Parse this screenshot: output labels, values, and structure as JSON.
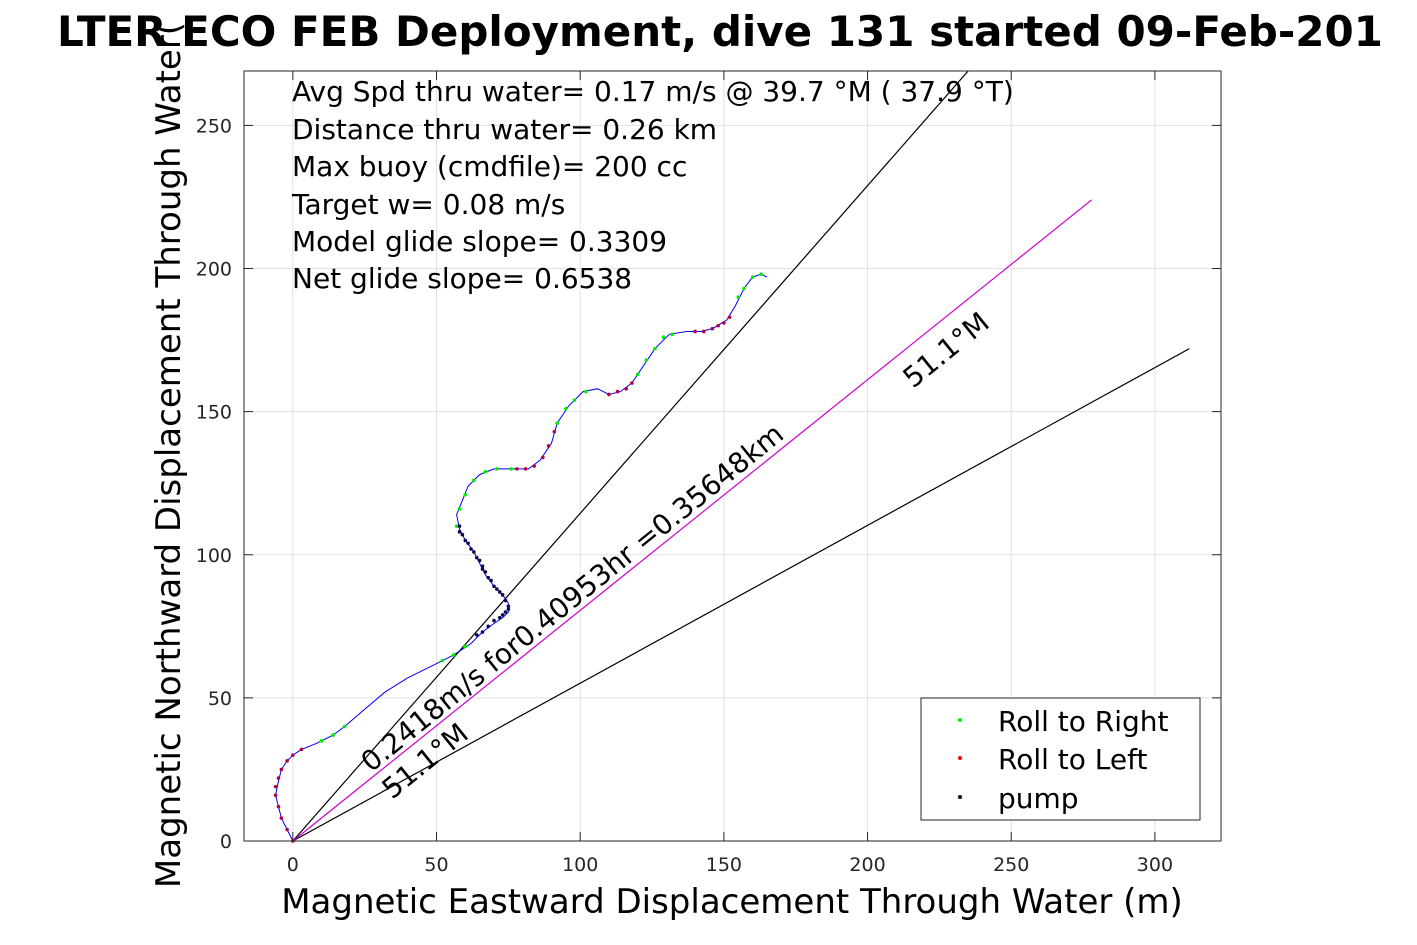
{
  "chart_data": {
    "type": "scatter",
    "title": "LTER ECO FEB Deployment, dive 131 started 09-Feb-201",
    "xlabel": "Magnetic Eastward Displacement Through Water (m)",
    "ylabel": "Magnetic Northward Displacement Through Water(",
    "xlim": [
      -17,
      323
    ],
    "ylim": [
      0,
      269
    ],
    "xticks": [
      0,
      50,
      100,
      150,
      200,
      250,
      300
    ],
    "yticks": [
      0,
      50,
      100,
      150,
      200,
      250
    ],
    "grid": true,
    "legend_position": "bottom-right",
    "legend": [
      {
        "label": "Roll to Right",
        "color": "#00ee00"
      },
      {
        "label": "Roll to Left",
        "color": "#ff0000"
      },
      {
        "label": "pump",
        "color": "#000000"
      }
    ],
    "info_lines": [
      "Avg Spd thru water=  0.17 m/s @  39.7 °M ( 37.9 °T)",
      "Distance thru water=  0.26 km",
      "Max buoy (cmdfile)= 200 cc",
      "Target w= 0.08 m/s",
      "Model glide slope= 0.3309",
      "Net glide slope= 0.6538"
    ],
    "annotations": {
      "current_label": "0.2418m/s for0.40953hr =0.35648km",
      "heading_label_upper": "51.1°M",
      "heading_label_lower": "51.1°M"
    },
    "track": {
      "color": "#0000ff",
      "points": [
        [
          0,
          0
        ],
        [
          -2,
          4
        ],
        [
          -4,
          8
        ],
        [
          -5,
          12
        ],
        [
          -6,
          16
        ],
        [
          -5,
          21
        ],
        [
          -4,
          25
        ],
        [
          -2,
          28
        ],
        [
          0,
          30
        ],
        [
          3,
          32
        ],
        [
          8,
          34
        ],
        [
          14,
          37
        ],
        [
          18,
          40
        ],
        [
          25,
          46
        ],
        [
          32,
          52
        ],
        [
          40,
          57
        ],
        [
          48,
          61
        ],
        [
          56,
          65
        ],
        [
          62,
          69
        ],
        [
          66,
          73
        ],
        [
          70,
          76
        ],
        [
          73,
          78
        ],
        [
          75,
          80
        ],
        [
          75,
          83
        ],
        [
          73,
          86
        ],
        [
          70,
          89
        ],
        [
          67,
          93
        ],
        [
          65,
          97
        ],
        [
          63,
          101
        ],
        [
          60,
          105
        ],
        [
          58,
          109
        ],
        [
          57,
          114
        ],
        [
          59,
          119
        ],
        [
          61,
          124
        ],
        [
          65,
          128
        ],
        [
          70,
          130
        ],
        [
          76,
          130
        ],
        [
          82,
          130
        ],
        [
          86,
          133
        ],
        [
          90,
          139
        ],
        [
          92,
          146
        ],
        [
          96,
          152
        ],
        [
          101,
          157
        ],
        [
          106,
          158
        ],
        [
          110,
          156
        ],
        [
          114,
          157
        ],
        [
          118,
          160
        ],
        [
          122,
          166
        ],
        [
          126,
          172
        ],
        [
          131,
          177
        ],
        [
          137,
          178
        ],
        [
          142,
          178
        ],
        [
          146,
          179
        ],
        [
          151,
          182
        ],
        [
          154,
          187
        ],
        [
          157,
          193
        ],
        [
          160,
          197
        ],
        [
          163,
          198
        ],
        [
          165,
          197
        ]
      ]
    },
    "roll_right_points": [
      [
        10,
        35
      ],
      [
        14,
        37
      ],
      [
        18,
        40
      ],
      [
        52,
        63
      ],
      [
        56,
        65
      ],
      [
        60,
        68
      ],
      [
        57,
        110
      ],
      [
        58,
        116
      ],
      [
        60,
        121
      ],
      [
        63,
        126
      ],
      [
        67,
        129
      ],
      [
        71,
        130
      ],
      [
        76,
        130
      ],
      [
        92,
        146
      ],
      [
        95,
        151
      ],
      [
        98,
        154
      ],
      [
        102,
        157
      ],
      [
        120,
        163
      ],
      [
        123,
        168
      ],
      [
        126,
        172
      ],
      [
        129,
        176
      ],
      [
        132,
        177
      ],
      [
        155,
        190
      ],
      [
        157,
        193
      ],
      [
        160,
        197
      ],
      [
        163,
        198
      ]
    ],
    "roll_left_points": [
      [
        0,
        0
      ],
      [
        -2,
        4
      ],
      [
        -4,
        8
      ],
      [
        -5,
        12
      ],
      [
        -6,
        16
      ],
      [
        -6,
        19
      ],
      [
        -5,
        22
      ],
      [
        -4,
        25
      ],
      [
        -2,
        28
      ],
      [
        0,
        30
      ],
      [
        3,
        32
      ],
      [
        78,
        130
      ],
      [
        81,
        130
      ],
      [
        84,
        131
      ],
      [
        87,
        134
      ],
      [
        89,
        138
      ],
      [
        91,
        143
      ],
      [
        110,
        156
      ],
      [
        113,
        157
      ],
      [
        116,
        158
      ],
      [
        118,
        160
      ],
      [
        140,
        178
      ],
      [
        143,
        178
      ],
      [
        146,
        179
      ],
      [
        148,
        180
      ],
      [
        150,
        181
      ],
      [
        152,
        183
      ]
    ],
    "pump_points": [
      [
        64,
        72
      ],
      [
        66,
        73
      ],
      [
        68,
        75
      ],
      [
        70,
        77
      ],
      [
        72,
        78
      ],
      [
        73,
        79
      ],
      [
        74,
        80
      ],
      [
        75,
        81
      ],
      [
        75,
        82
      ],
      [
        74,
        84
      ],
      [
        73,
        86
      ],
      [
        72,
        87
      ],
      [
        71,
        88
      ],
      [
        70,
        89
      ],
      [
        69,
        91
      ],
      [
        68,
        92
      ],
      [
        67,
        94
      ],
      [
        66,
        95
      ],
      [
        66,
        96
      ],
      [
        65,
        98
      ],
      [
        64,
        99
      ],
      [
        63,
        101
      ],
      [
        62,
        102
      ],
      [
        61,
        104
      ],
      [
        60,
        105
      ],
      [
        59,
        107
      ],
      [
        58,
        108
      ],
      [
        58,
        110
      ]
    ],
    "reference_lines": [
      {
        "name": "",
        "color": "#000000",
        "x": [
          0,
          235
        ],
        "y": [
          0,
          269
        ]
      },
      {
        "name": "",
        "color": "#000000",
        "x": [
          0,
          312
        ],
        "y": [
          0,
          172
        ]
      },
      {
        "name": "",
        "color": "#cc00cc",
        "x": [
          0,
          278
        ],
        "y": [
          0,
          224
        ]
      }
    ]
  }
}
